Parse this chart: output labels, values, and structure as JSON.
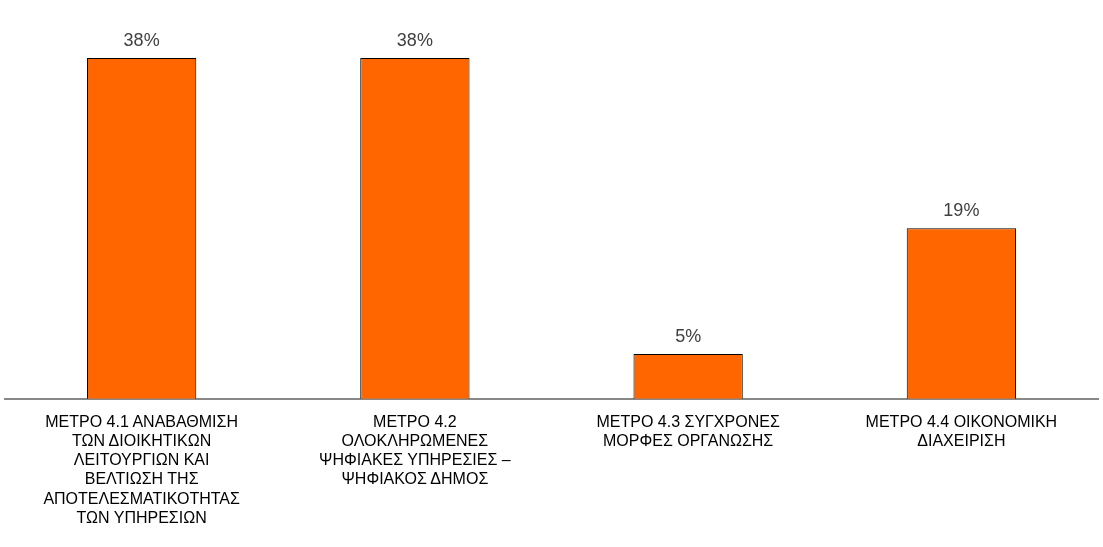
{
  "chart_data": {
    "type": "bar",
    "categories": [
      "ΜΕΤΡΟ 4.1 ΑΝΑΒΑΘΜΙΣΗ ΤΩΝ ΔΙΟΙΚΗΤΙΚΩΝ ΛΕΙΤΟΥΡΓΙΩΝ ΚΑΙ ΒΕΛΤΙΩΣΗ ΤΗΣ ΑΠΟΤΕΛΕΣΜΑΤΙΚΟΤΗΤΑΣ ΤΩΝ ΥΠΗΡΕΣΙΩΝ",
      "ΜΕΤΡΟ 4.2 ΟΛΟΚΛΗΡΩΜΕΝΕΣ ΨΗΦΙΑΚΕΣ ΥΠΗΡΕΣΙΕΣ – ΨΗΦΙΑΚΟΣ ΔΗΜΟΣ",
      "ΜΕΤΡΟ 4.3 ΣΥΓΧΡΟΝΕΣ ΜΟΡΦΕΣ ΟΡΓΑΝΩΣΗΣ",
      "ΜΕΤΡΟ 4.4 ΟΙΚΟΝΟΜΙΚΗ ΔΙΑΧΕΙΡΙΣΗ"
    ],
    "values": [
      38,
      38,
      5,
      19
    ],
    "value_labels": [
      "38%",
      "38%",
      "5%",
      "19%"
    ],
    "color": "#ff6600",
    "grid": false,
    "legend": false
  }
}
